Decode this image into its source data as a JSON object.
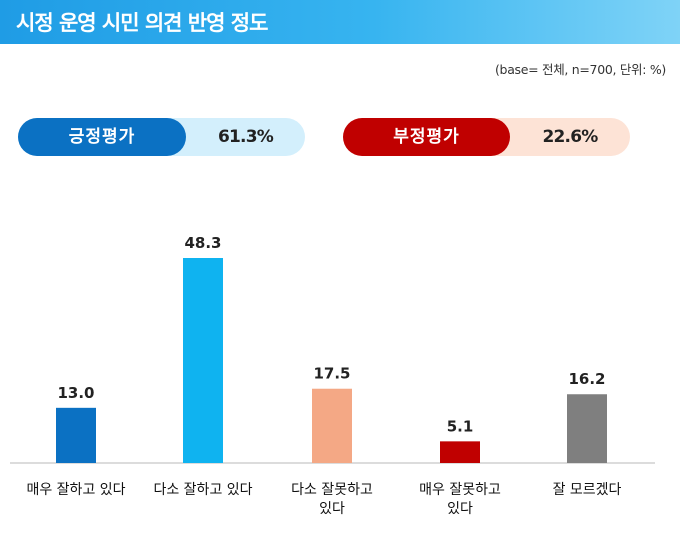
{
  "title": "시정 운영 시민 의견 반영 정도",
  "note": "(base= 전체, n=700, 단위: %)",
  "summary": {
    "positive": {
      "label": "긍정평가",
      "value": "61.3%",
      "color": "#0b71c3",
      "bg": "#d3effc"
    },
    "negative": {
      "label": "부정평가",
      "value": "22.6%",
      "color": "#c00000",
      "bg": "#fde3d6"
    }
  },
  "chart_data": {
    "type": "bar",
    "categories": [
      [
        "매우 잘하고 있다"
      ],
      [
        "다소 잘하고 있다"
      ],
      [
        "다소 잘못하고",
        "있다"
      ],
      [
        "매우 잘못하고",
        "있다"
      ],
      [
        "잘 모르겠다"
      ]
    ],
    "values": [
      13.0,
      48.3,
      17.5,
      5.1,
      16.2
    ],
    "value_labels": [
      "13.0",
      "48.3",
      "17.5",
      "5.1",
      "16.2"
    ],
    "colors": [
      "#0b71c3",
      "#0fb3f0",
      "#f4a885",
      "#c00000",
      "#7f7f7f"
    ],
    "ylim": [
      0,
      48.3
    ],
    "grid": false,
    "legend": "none"
  }
}
